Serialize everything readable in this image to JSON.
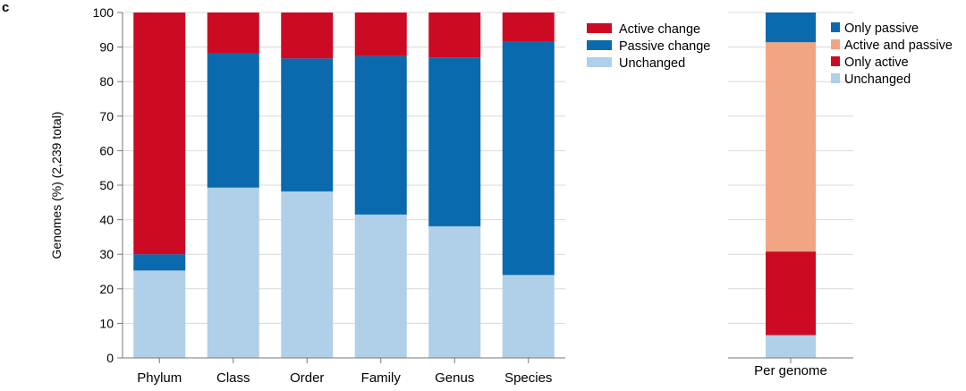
{
  "panel_label": "c",
  "chart_data": [
    {
      "type": "bar",
      "stacked": true,
      "ylabel": "Genomes (%) (2,239 total)",
      "ylim": [
        0,
        100
      ],
      "yticks": [
        0,
        10,
        20,
        30,
        40,
        50,
        60,
        70,
        80,
        90,
        100
      ],
      "grid": true,
      "legend_position": "right",
      "categories": [
        "Phylum",
        "Class",
        "Order",
        "Family",
        "Genus",
        "Species"
      ],
      "series": [
        {
          "name": "Unchanged",
          "color": "#b0cfe8",
          "values": [
            25.3,
            49.3,
            48.2,
            41.5,
            38.1,
            24.0
          ]
        },
        {
          "name": "Passive change",
          "color": "#0a6aad",
          "values": [
            4.7,
            38.8,
            38.5,
            45.9,
            48.9,
            67.7
          ]
        },
        {
          "name": "Active change",
          "color": "#cc0a24",
          "values": [
            70.0,
            11.9,
            13.3,
            12.6,
            13.0,
            8.3
          ]
        }
      ],
      "legend": [
        {
          "name": "Active change",
          "color": "#cc0a24"
        },
        {
          "name": "Passive change",
          "color": "#0a6aad"
        },
        {
          "name": "Unchanged",
          "color": "#b0cfe8"
        }
      ]
    },
    {
      "type": "bar",
      "stacked": true,
      "ylim": [
        0,
        100
      ],
      "grid": true,
      "legend_position": "right",
      "categories": [
        "Per genome"
      ],
      "series": [
        {
          "name": "Unchanged",
          "color": "#b0cfe8",
          "values": [
            6.6
          ]
        },
        {
          "name": "Only active",
          "color": "#cc0a24",
          "values": [
            24.2
          ]
        },
        {
          "name": "Active and passive",
          "color": "#f2a583",
          "values": [
            60.6
          ]
        },
        {
          "name": "Only passive",
          "color": "#0a6aad",
          "values": [
            8.6
          ]
        }
      ],
      "legend": [
        {
          "name": "Only passive",
          "color": "#0a6aad"
        },
        {
          "name": "Active and passive",
          "color": "#f2a583"
        },
        {
          "name": "Only active",
          "color": "#cc0a24"
        },
        {
          "name": "Unchanged",
          "color": "#b0cfe8"
        }
      ]
    }
  ]
}
